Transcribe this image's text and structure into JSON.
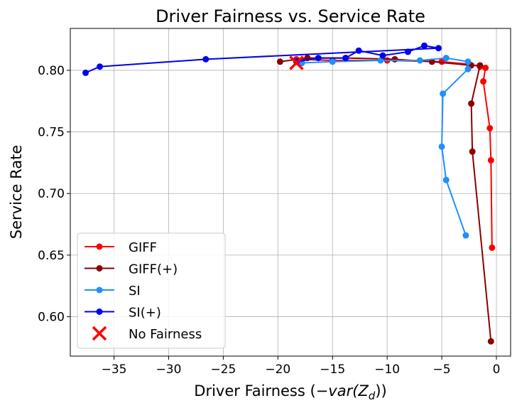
{
  "chart_data": {
    "type": "line",
    "title": "Driver Fairness vs. Service Rate",
    "xlabel_prefix": "Driver Fairness (",
    "xlabel_math": "−var(Z",
    "xlabel_subscript": "d",
    "xlabel_suffix": "))",
    "ylabel": "Service Rate",
    "xlim": [
      -39,
      1.3
    ],
    "ylim": [
      0.568,
      0.834
    ],
    "xticks": [
      -35,
      -30,
      -25,
      -20,
      -15,
      -10,
      -5,
      0
    ],
    "xtick_labels": [
      "−35",
      "−30",
      "−25",
      "−20",
      "−15",
      "−10",
      "−5",
      "0"
    ],
    "yticks": [
      0.6,
      0.65,
      0.7,
      0.75,
      0.8
    ],
    "ytick_labels": [
      "0.60",
      "0.65",
      "0.70",
      "0.75",
      "0.80"
    ],
    "grid": true,
    "legend_position": "lower-left",
    "series": [
      {
        "name": "GIFF",
        "color": "#ff0000",
        "marker": "circle",
        "x": [
          -18.3,
          -15.0,
          -10.0,
          -5.0,
          -2.5,
          -1.5,
          -1.0,
          -1.2,
          -0.6,
          -0.5,
          -0.4
        ],
        "y": [
          0.809,
          0.808,
          0.808,
          0.807,
          0.805,
          0.803,
          0.802,
          0.791,
          0.753,
          0.727,
          0.656
        ]
      },
      {
        "name": "GIFF(+)",
        "color": "#8b0000",
        "marker": "circle",
        "x": [
          -19.8,
          -17.3,
          -13.8,
          -9.3,
          -5.9,
          -2.3,
          -1.5,
          -2.3,
          -2.2,
          -0.5
        ],
        "y": [
          0.807,
          0.81,
          0.81,
          0.809,
          0.807,
          0.804,
          0.804,
          0.773,
          0.734,
          0.58
        ]
      },
      {
        "name": "SI",
        "color": "#1e90ff",
        "marker": "circle",
        "x": [
          -17.8,
          -15.0,
          -10.6,
          -7.0,
          -4.6,
          -2.6,
          -2.6,
          -4.9,
          -5.0,
          -4.6,
          -2.8
        ],
        "y": [
          0.806,
          0.807,
          0.808,
          0.808,
          0.81,
          0.807,
          0.801,
          0.781,
          0.738,
          0.711,
          0.666
        ]
      },
      {
        "name": "SI(+)",
        "color": "#0000ee",
        "marker": "circle",
        "x": [
          -37.6,
          -36.3,
          -26.6,
          -5.3,
          -6.6,
          -8.1,
          -10.4,
          -12.6,
          -13.8,
          -16.3,
          -18.3
        ],
        "y": [
          0.798,
          0.803,
          0.809,
          0.818,
          0.82,
          0.815,
          0.812,
          0.816,
          0.81,
          0.81,
          0.807
        ]
      }
    ],
    "scatter": [
      {
        "name": "No Fairness",
        "color": "#ff0000",
        "marker": "x",
        "x": [
          -18.3
        ],
        "y": [
          0.806
        ]
      }
    ]
  }
}
